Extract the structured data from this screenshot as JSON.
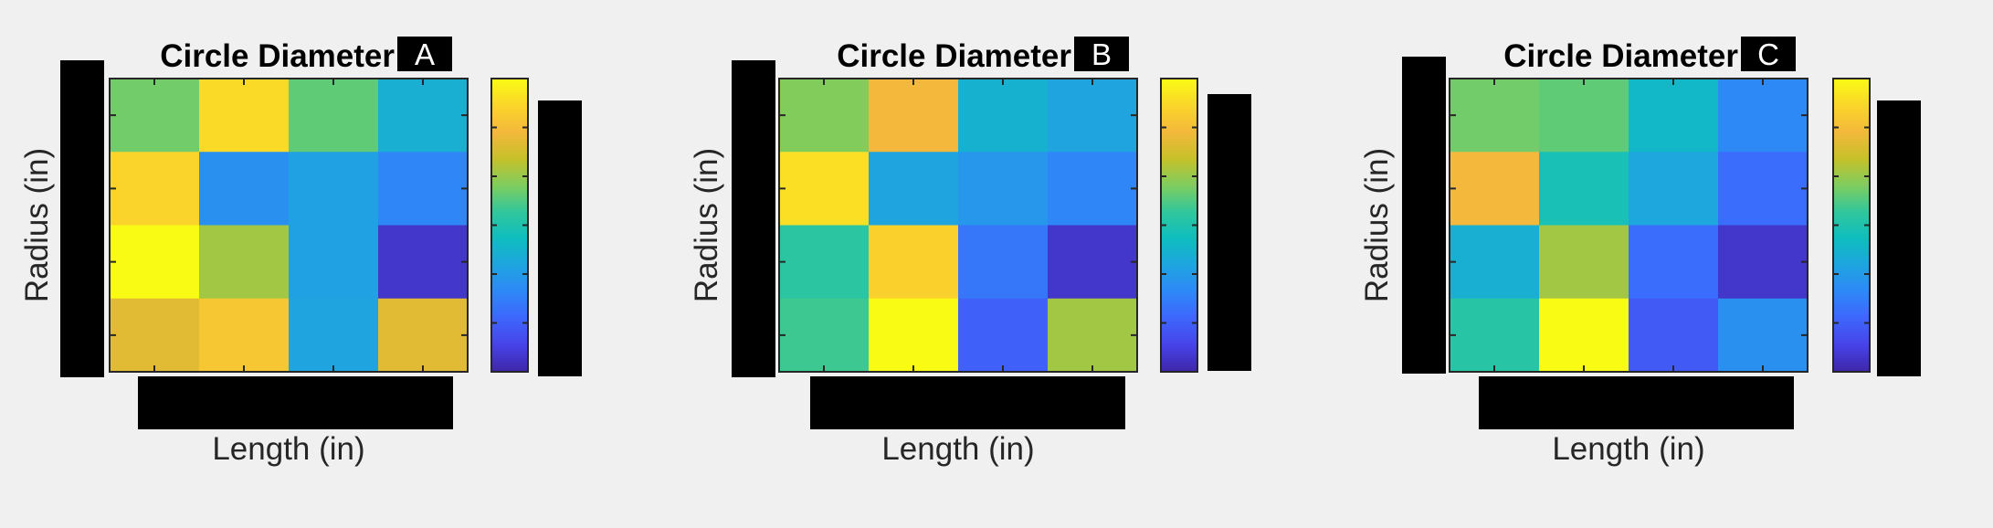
{
  "colors": {
    "background": "#f0f0f0",
    "redaction": "#000000",
    "axis": "#262626",
    "colormap": [
      "#3e26a8",
      "#4743e8",
      "#3e66fd",
      "#2e87f7",
      "#1ea5df",
      "#0ebdbf",
      "#31c79c",
      "#7fcd5e",
      "#c7c029",
      "#f4b83c",
      "#fbd629",
      "#f9fb15"
    ]
  },
  "chart_data": [
    {
      "type": "heatmap",
      "title": "Circle Diameter",
      "panel_label": "A",
      "xlabel": "Length (in)",
      "ylabel": "Radius (in)",
      "colorbar": true,
      "clim": [
        0,
        1
      ],
      "values": [
        [
          0.62,
          0.92,
          0.6,
          0.4
        ],
        [
          0.9,
          0.3,
          0.35,
          0.27
        ],
        [
          1.0,
          0.68,
          0.35,
          0.05
        ],
        [
          0.78,
          0.86,
          0.36,
          0.78
        ]
      ]
    },
    {
      "type": "heatmap",
      "title": "Circle Diameter",
      "panel_label": "B",
      "xlabel": "Length (in)",
      "ylabel": "Radius (in)",
      "colorbar": true,
      "clim": [
        0,
        1
      ],
      "values": [
        [
          0.64,
          0.82,
          0.41,
          0.36
        ],
        [
          0.93,
          0.36,
          0.32,
          0.27
        ],
        [
          0.53,
          0.89,
          0.23,
          0.05
        ],
        [
          0.56,
          1.0,
          0.17,
          0.68
        ]
      ]
    },
    {
      "type": "heatmap",
      "title": "Circle Diameter",
      "panel_label": "C",
      "xlabel": "Length (in)",
      "ylabel": "Radius (in)",
      "colorbar": true,
      "clim": [
        0,
        1
      ],
      "values": [
        [
          0.62,
          0.6,
          0.43,
          0.28
        ],
        [
          0.82,
          0.48,
          0.37,
          0.2
        ],
        [
          0.4,
          0.68,
          0.2,
          0.05
        ],
        [
          0.52,
          1.0,
          0.15,
          0.3
        ]
      ]
    }
  ]
}
